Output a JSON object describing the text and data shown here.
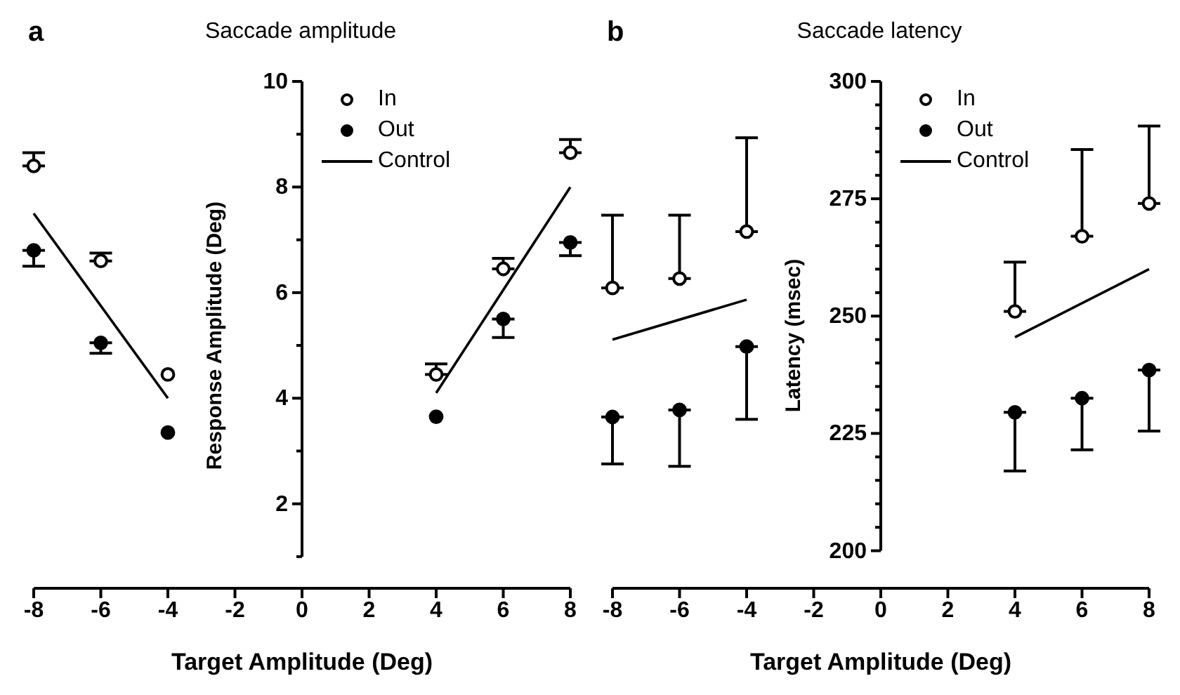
{
  "chart_data": [
    {
      "type": "scatter",
      "title": "Saccade amplitude",
      "xlabel": "Target Amplitude (Deg)",
      "ylabel": "Response Amplitude (Deg)",
      "annotations": [
        "a"
      ],
      "x": [
        -8,
        -6,
        -4,
        4,
        6,
        8
      ],
      "xlim": [
        -8,
        8
      ],
      "xticks": [
        -8,
        -6,
        -4,
        -2,
        0,
        2,
        4,
        6,
        8
      ],
      "ylim": [
        0.4,
        10
      ],
      "yticks": [
        {
          "value": 1,
          "label": null
        },
        2,
        {
          "value": 3,
          "label": null
        },
        4,
        {
          "value": 5,
          "label": null
        },
        6,
        {
          "value": 7,
          "label": null
        },
        8,
        {
          "value": 9,
          "label": null
        },
        10
      ],
      "legend": "top",
      "series": [
        {
          "name": "In",
          "type": "scatter",
          "marker": "circle",
          "color": "#000000",
          "values": [
            8.4,
            6.6,
            4.45,
            4.45,
            6.45,
            8.65
          ],
          "errors": [
            [
              8.4,
              8.65
            ],
            [
              6.6,
              6.75
            ],
            null,
            [
              4.45,
              4.65
            ],
            [
              6.45,
              6.65
            ],
            [
              8.65,
              8.9
            ]
          ]
        },
        {
          "name": "Out",
          "type": "scatter",
          "marker": "circle",
          "color": "#000000",
          "values": [
            6.8,
            5.05,
            3.35,
            3.65,
            5.5,
            6.95
          ],
          "errors": [
            [
              6.5,
              6.8
            ],
            [
              4.85,
              5.05
            ],
            null,
            null,
            [
              5.15,
              5.5
            ],
            [
              6.7,
              6.95
            ]
          ]
        },
        {
          "name": "Control",
          "type": "line",
          "marker": "none",
          "color": "#000000",
          "line_style": "solid",
          "x": [
            -8,
            -4,
            0,
            4,
            8
          ],
          "values": [
            7.5,
            4.0,
            null,
            4.1,
            8.0
          ]
        }
      ]
    },
    {
      "type": "scatter",
      "title": "Saccade latency",
      "xlabel": "Target Amplitude (Deg)",
      "ylabel": "Latency (msec)",
      "annotations": [
        "b"
      ],
      "x": [
        -8,
        -6,
        -4,
        4,
        6,
        8
      ],
      "xlim": [
        -8,
        8
      ],
      "xticks": [
        -8,
        -6,
        -4,
        -2,
        0,
        2,
        4,
        6,
        8
      ],
      "ylim": [
        192,
        300
      ],
      "yticks": [
        200,
        {
          "value": 205,
          "label": null
        },
        {
          "value": 210,
          "label": null
        },
        {
          "value": 215,
          "label": null
        },
        {
          "value": 220,
          "label": null
        },
        225,
        {
          "value": 230,
          "label": null
        },
        {
          "value": 235,
          "label": null
        },
        {
          "value": 240,
          "label": null
        },
        {
          "value": 245,
          "label": null
        },
        250,
        {
          "value": 255,
          "label": null
        },
        {
          "value": 260,
          "label": null
        },
        {
          "value": 265,
          "label": null
        },
        {
          "value": 270,
          "label": null
        },
        275,
        {
          "value": 280,
          "label": null
        },
        {
          "value": 285,
          "label": null
        },
        {
          "value": 290,
          "label": null
        },
        {
          "value": 295,
          "label": null
        },
        300
      ],
      "legend": "top",
      "series": [
        {
          "name": "In",
          "type": "scatter",
          "marker": "circle",
          "color": "#000000",
          "values": [
            256,
            258,
            268,
            251,
            267,
            274
          ],
          "errors": [
            [
              256,
              271.5
            ],
            [
              258,
              271.5
            ],
            [
              268,
              288
            ],
            [
              251,
              261.5
            ],
            [
              267,
              285.5
            ],
            [
              274,
              290.5
            ]
          ]
        },
        {
          "name": "Out",
          "type": "scatter",
          "marker": "circle",
          "color": "#000000",
          "values": [
            228.5,
            230,
            243.5,
            229.5,
            232.5,
            238.5
          ],
          "errors": [
            [
              218.5,
              228.5
            ],
            [
              218,
              230
            ],
            [
              228,
              243.5
            ],
            [
              217,
              229.5
            ],
            [
              221.5,
              232.5
            ],
            [
              225.5,
              238.5
            ]
          ]
        },
        {
          "name": "Control",
          "type": "line",
          "marker": "none",
          "color": "#000000",
          "line_style": "solid",
          "x": [
            -8,
            -4,
            0,
            4,
            8
          ],
          "values": [
            245,
            253.5,
            null,
            245.5,
            260
          ]
        }
      ]
    }
  ]
}
